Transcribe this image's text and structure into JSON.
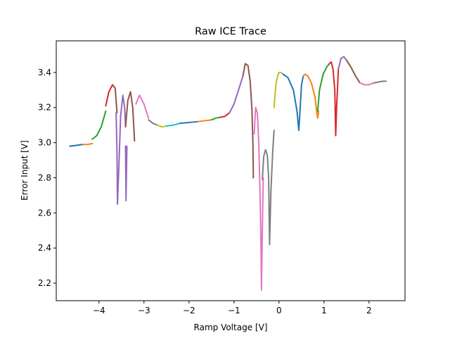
{
  "chart_data": {
    "type": "line",
    "title": "Raw ICE Trace",
    "xlabel": "Ramp Voltage [V]",
    "ylabel": "Error Input [V]",
    "xlim": [
      -4.95,
      2.8
    ],
    "ylim": [
      2.1,
      3.58
    ],
    "xticks": [
      -4,
      -3,
      -2,
      -1,
      0,
      1,
      2
    ],
    "yticks": [
      2.2,
      2.4,
      2.6,
      2.8,
      3.0,
      3.2,
      3.4
    ],
    "grid": false,
    "legend": "none",
    "series": [
      {
        "color": "#1f77b4",
        "x": [
          -4.65,
          -4.5,
          -4.35
        ],
        "y": [
          2.98,
          2.985,
          2.99
        ]
      },
      {
        "color": "#ff7f0e",
        "x": [
          -4.35,
          -4.25,
          -4.15
        ],
        "y": [
          2.99,
          2.99,
          2.995
        ]
      },
      {
        "color": "#2ca02c",
        "x": [
          -4.15,
          -4.05,
          -3.95,
          -3.85
        ],
        "y": [
          3.02,
          3.04,
          3.09,
          3.18
        ]
      },
      {
        "color": "#d62728",
        "x": [
          -3.85,
          -3.78,
          -3.7,
          -3.64
        ],
        "y": [
          3.21,
          3.29,
          3.33,
          3.31
        ]
      },
      {
        "color": "#8c564b",
        "x": [
          -3.64,
          -3.6
        ],
        "y": [
          3.31,
          3.17
        ]
      },
      {
        "color": "#9467bd",
        "x": [
          -3.62,
          -3.6,
          -3.59,
          -3.56,
          -3.52,
          -3.47,
          -3.43,
          -3.41
        ],
        "y": [
          3.17,
          2.95,
          2.65,
          2.85,
          3.15,
          3.27,
          3.2,
          3.09
        ]
      },
      {
        "color": "#8c564b",
        "x": [
          -3.41,
          -3.36,
          -3.3,
          -3.25,
          -3.21
        ],
        "y": [
          3.09,
          3.24,
          3.29,
          3.2,
          3.01
        ]
      },
      {
        "color": "#9467bd",
        "x": [
          -3.41,
          -3.4,
          -3.38
        ],
        "y": [
          2.98,
          2.67,
          2.98
        ]
      },
      {
        "color": "#e377c2",
        "x": [
          -3.18,
          -3.1,
          -3.0,
          -2.9
        ],
        "y": [
          3.22,
          3.27,
          3.22,
          3.14
        ]
      },
      {
        "color": "#7f7f7f",
        "x": [
          -2.9,
          -2.8,
          -2.7
        ],
        "y": [
          3.13,
          3.11,
          3.1
        ]
      },
      {
        "color": "#bcbd22",
        "x": [
          -2.7,
          -2.6,
          -2.5
        ],
        "y": [
          3.1,
          3.09,
          3.095
        ]
      },
      {
        "color": "#17becf",
        "x": [
          -2.5,
          -2.35,
          -2.2
        ],
        "y": [
          3.095,
          3.1,
          3.11
        ]
      },
      {
        "color": "#1f77b4",
        "x": [
          -2.2,
          -2.0,
          -1.8
        ],
        "y": [
          3.11,
          3.115,
          3.12
        ]
      },
      {
        "color": "#ff7f0e",
        "x": [
          -1.8,
          -1.65,
          -1.5
        ],
        "y": [
          3.12,
          3.125,
          3.13
        ]
      },
      {
        "color": "#2ca02c",
        "x": [
          -1.5,
          -1.4,
          -1.3
        ],
        "y": [
          3.13,
          3.14,
          3.145
        ]
      },
      {
        "color": "#d62728",
        "x": [
          -1.3,
          -1.2,
          -1.1
        ],
        "y": [
          3.145,
          3.15,
          3.17
        ]
      },
      {
        "color": "#9467bd",
        "x": [
          -1.1,
          -1.0,
          -0.9,
          -0.8
        ],
        "y": [
          3.17,
          3.22,
          3.3,
          3.38
        ]
      },
      {
        "color": "#8c564b",
        "x": [
          -0.8,
          -0.75,
          -0.69,
          -0.64,
          -0.6,
          -0.58,
          -0.57
        ],
        "y": [
          3.38,
          3.45,
          3.44,
          3.35,
          3.18,
          3.0,
          2.8
        ]
      },
      {
        "color": "#e377c2",
        "x": [
          -0.55,
          -0.52,
          -0.48,
          -0.45,
          -0.42,
          -0.4,
          -0.39,
          -0.37,
          -0.35
        ],
        "y": [
          3.05,
          3.2,
          3.17,
          3.0,
          2.7,
          2.4,
          2.16,
          2.5,
          2.8
        ]
      },
      {
        "color": "#7f7f7f",
        "x": [
          -0.37,
          -0.34,
          -0.3,
          -0.26,
          -0.23,
          -0.21,
          -0.18,
          -0.14,
          -0.11
        ],
        "y": [
          2.79,
          2.92,
          2.96,
          2.93,
          2.8,
          2.42,
          2.72,
          2.95,
          3.07
        ]
      },
      {
        "color": "#bcbd22",
        "x": [
          -0.11,
          -0.07,
          -0.03,
          0.0,
          0.04,
          0.09
        ],
        "y": [
          3.2,
          3.33,
          3.38,
          3.4,
          3.4,
          3.39
        ]
      },
      {
        "color": "#1f77b4",
        "x": [
          0.09,
          0.2,
          0.32,
          0.4,
          0.44,
          0.46,
          0.5,
          0.54
        ],
        "y": [
          3.39,
          3.37,
          3.3,
          3.18,
          3.07,
          3.15,
          3.33,
          3.38
        ]
      },
      {
        "color": "#ff7f0e",
        "x": [
          0.54,
          0.58,
          0.64,
          0.72,
          0.8,
          0.84,
          0.86,
          0.88
        ],
        "y": [
          3.38,
          3.39,
          3.38,
          3.34,
          3.26,
          3.17,
          3.14,
          3.18
        ]
      },
      {
        "color": "#2ca02c",
        "x": [
          0.86,
          0.9,
          0.98,
          1.06,
          1.12
        ],
        "y": [
          3.18,
          3.3,
          3.39,
          3.43,
          3.45
        ]
      },
      {
        "color": "#d62728",
        "x": [
          1.12,
          1.16,
          1.2,
          1.24,
          1.26,
          1.28,
          1.32
        ],
        "y": [
          3.45,
          3.46,
          3.42,
          3.3,
          3.04,
          3.2,
          3.42
        ]
      },
      {
        "color": "#9467bd",
        "x": [
          1.32,
          1.38,
          1.44,
          1.5
        ],
        "y": [
          3.42,
          3.48,
          3.49,
          3.47
        ]
      },
      {
        "color": "#8c564b",
        "x": [
          1.5,
          1.6,
          1.7,
          1.8
        ],
        "y": [
          3.47,
          3.43,
          3.38,
          3.34
        ]
      },
      {
        "color": "#e377c2",
        "x": [
          1.8,
          1.9,
          2.0,
          2.1
        ],
        "y": [
          3.34,
          3.33,
          3.33,
          3.34
        ]
      },
      {
        "color": "#7f7f7f",
        "x": [
          2.1,
          2.2,
          2.3,
          2.38
        ],
        "y": [
          3.34,
          3.345,
          3.35,
          3.35
        ]
      }
    ]
  }
}
